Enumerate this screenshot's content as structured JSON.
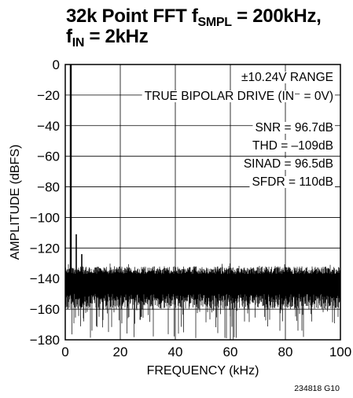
{
  "title": {
    "line1": {
      "pre": "32k Point FFT f",
      "sub": "SMPL",
      "post": " = 200kHz,"
    },
    "line2": {
      "pre": "f",
      "sub": "IN",
      "post": " = 2kHz"
    }
  },
  "chart_data": {
    "type": "line",
    "xlabel": "FREQUENCY (kHz)",
    "ylabel": "AMPLITUDE (dBFS)",
    "xlim": [
      0,
      100
    ],
    "ylim": [
      -180,
      0
    ],
    "xticks": [
      0,
      20,
      40,
      60,
      80,
      100
    ],
    "yticks": [
      0,
      -20,
      -40,
      -60,
      -80,
      -100,
      -120,
      -140,
      -160,
      -180
    ],
    "grid": true,
    "fundamental": {
      "x": 2,
      "y": 0
    },
    "spurs": [
      {
        "x": 4,
        "y": -111
      },
      {
        "x": 6,
        "y": -124
      }
    ],
    "noise_floor": {
      "upper": -132,
      "typical": -147,
      "lower_min": -180
    },
    "annotations": [
      "±10.24V RANGE",
      "TRUE BIPOLAR DRIVE (IN⁻ = 0V)",
      "SNR = 96.7dB",
      "THD = –109dB",
      "SINAD = 96.5dB",
      "SFDR = 110dB"
    ],
    "figure_id": "234818 G10"
  }
}
